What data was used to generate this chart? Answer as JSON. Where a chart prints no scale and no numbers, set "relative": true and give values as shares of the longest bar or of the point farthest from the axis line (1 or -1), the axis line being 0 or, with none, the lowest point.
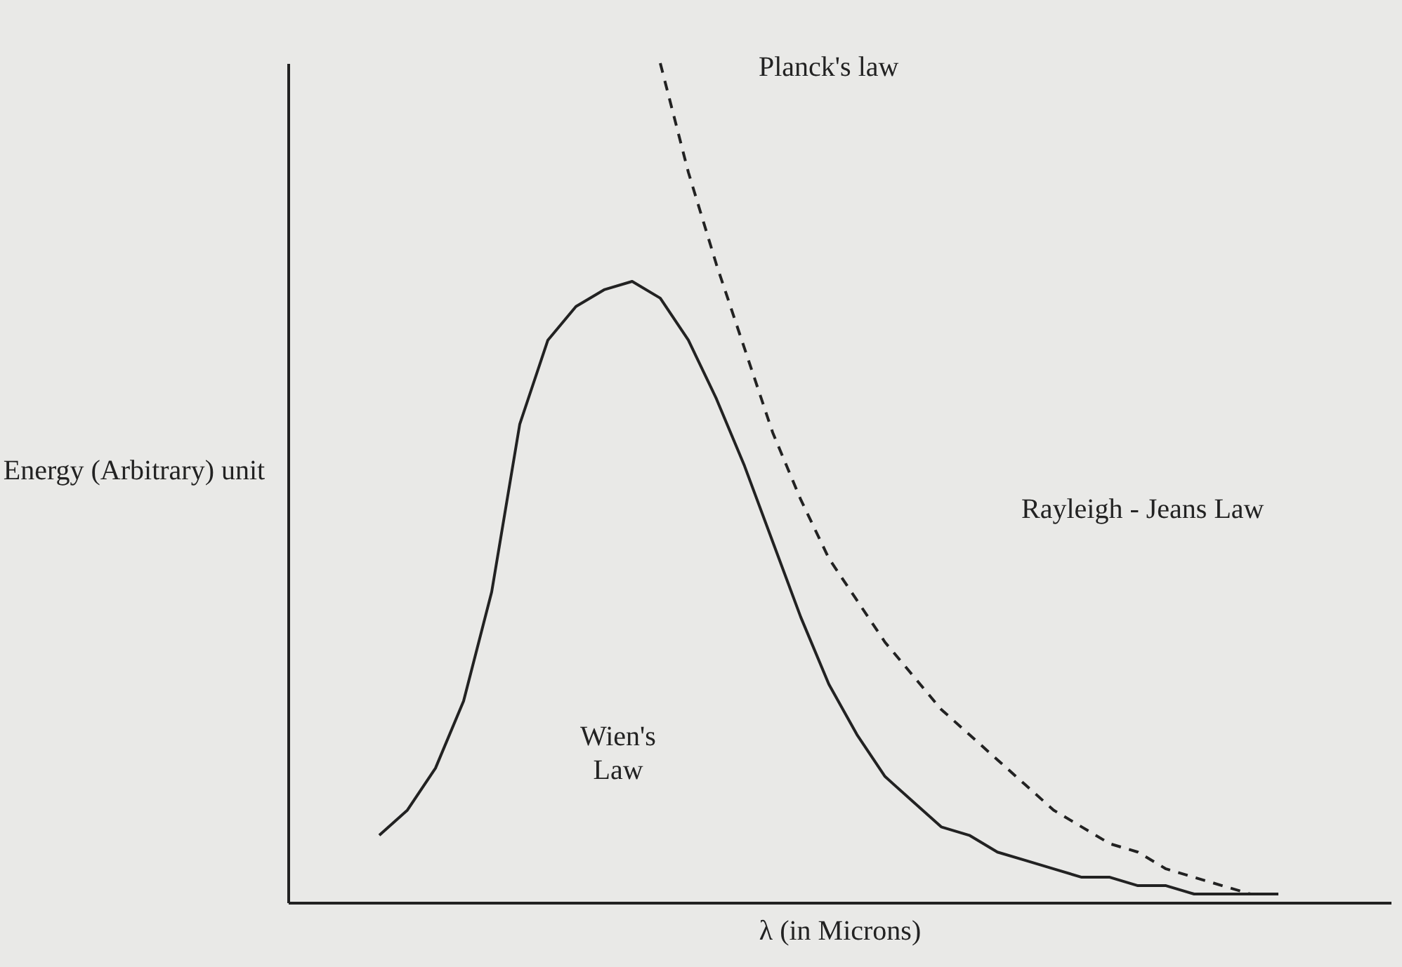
{
  "chart_data": {
    "type": "line",
    "relative": true,
    "xlabel": "λ (in Microns)",
    "ylabel": "Energy (Arbitrary) unit",
    "categories": [
      null,
      null,
      null,
      null,
      null,
      null,
      null,
      null,
      null,
      null,
      null,
      null,
      null,
      null,
      null,
      null,
      null,
      null,
      null,
      null,
      null,
      null,
      null,
      null,
      null,
      null,
      null,
      null,
      null,
      null,
      null,
      null,
      null
    ],
    "series": [
      {
        "color": "#222222",
        "line_style": "solid",
        "values": [
          0.08,
          0.11,
          0.16,
          0.24,
          0.37,
          0.57,
          0.67,
          0.71,
          0.73,
          0.74,
          0.72,
          0.67,
          0.6,
          0.52,
          0.43,
          0.34,
          0.26,
          0.2,
          0.15,
          0.12,
          0.09,
          0.08,
          0.06,
          0.05,
          0.04,
          0.03,
          0.03,
          0.02,
          0.02,
          0.01,
          0.01,
          0.01,
          0.01
        ]
      },
      {
        "color": "#222222",
        "line_style": "dashed",
        "values": [
          null,
          null,
          null,
          null,
          null,
          null,
          null,
          null,
          null,
          null,
          1.0,
          0.87,
          0.76,
          0.66,
          0.56,
          0.48,
          0.41,
          0.36,
          0.31,
          0.27,
          0.23,
          0.2,
          0.17,
          0.14,
          0.11,
          0.09,
          0.07,
          0.06,
          0.04,
          0.03,
          0.02,
          0.01,
          0.01
        ]
      }
    ],
    "annotations": [
      "Planck's law",
      "Rayleigh - Jeans Law",
      "Wien's Law"
    ],
    "grid": false
  }
}
